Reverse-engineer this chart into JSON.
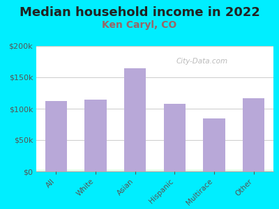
{
  "title": "Median household income in 2022",
  "subtitle": "Ken Caryl, CO",
  "categories": [
    "All",
    "White",
    "Asian",
    "Hispanic",
    "Multirace",
    "Other"
  ],
  "values": [
    112000,
    115000,
    165000,
    108000,
    85000,
    117000
  ],
  "bar_color": "#b8a8d8",
  "background_outer": "#00eeff",
  "title_color": "#222222",
  "subtitle_color": "#996666",
  "tick_label_color": "#555555",
  "ylim": [
    0,
    200000
  ],
  "yticks": [
    0,
    50000,
    100000,
    150000,
    200000
  ],
  "title_fontsize": 13,
  "subtitle_fontsize": 10,
  "watermark_text": "City-Data.com",
  "watermark_color": "#aaaaaa"
}
